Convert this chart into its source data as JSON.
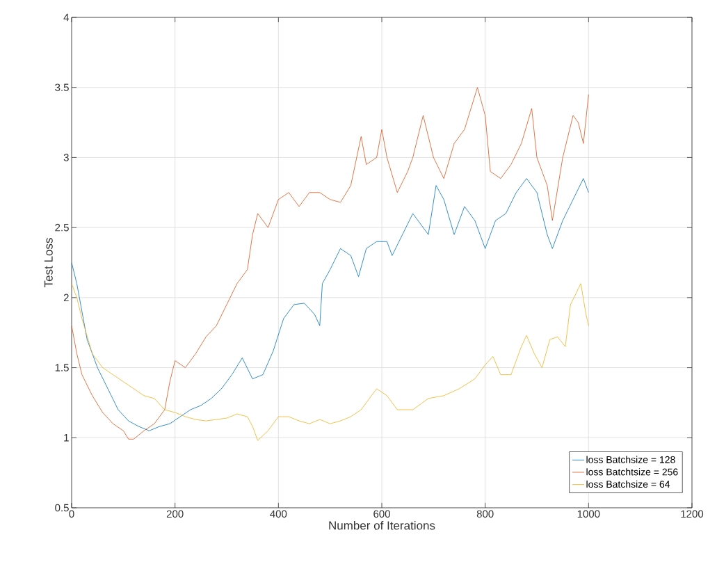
{
  "chart_data": {
    "type": "line",
    "xlabel": "Number of Iterations",
    "ylabel": "Test Loss",
    "xlim": [
      0,
      1200
    ],
    "ylim": [
      0.5,
      4
    ],
    "xticks": [
      0,
      200,
      400,
      600,
      800,
      1000,
      1200
    ],
    "yticks": [
      0.5,
      1,
      1.5,
      2,
      2.5,
      3,
      3.5,
      4
    ],
    "grid": true,
    "legend": "bottom right",
    "marker": "none",
    "line_style": "solid",
    "series": [
      {
        "name": "loss Batchsize = 128",
        "color": "#0072bd",
        "x": [
          0,
          10,
          20,
          30,
          50,
          70,
          90,
          110,
          130,
          150,
          170,
          190,
          210,
          230,
          250,
          270,
          290,
          310,
          330,
          350,
          370,
          390,
          410,
          430,
          450,
          470,
          480,
          485,
          500,
          520,
          540,
          555,
          570,
          590,
          610,
          620,
          640,
          660,
          670,
          690,
          705,
          720,
          740,
          760,
          780,
          800,
          820,
          840,
          860,
          880,
          900,
          920,
          930,
          950,
          970,
          990,
          1000
        ],
        "values": [
          2.25,
          2.1,
          1.9,
          1.7,
          1.5,
          1.35,
          1.2,
          1.12,
          1.08,
          1.05,
          1.08,
          1.1,
          1.15,
          1.2,
          1.23,
          1.28,
          1.35,
          1.45,
          1.57,
          1.42,
          1.45,
          1.62,
          1.85,
          1.95,
          1.96,
          1.88,
          1.8,
          2.1,
          2.2,
          2.35,
          2.3,
          2.15,
          2.35,
          2.4,
          2.4,
          2.3,
          2.45,
          2.6,
          2.55,
          2.45,
          2.8,
          2.7,
          2.45,
          2.65,
          2.55,
          2.35,
          2.55,
          2.6,
          2.75,
          2.85,
          2.75,
          2.45,
          2.35,
          2.55,
          2.7,
          2.85,
          2.75
        ]
      },
      {
        "name": "loss Batchtsize = 256",
        "color": "#d95319",
        "x": [
          0,
          10,
          20,
          40,
          60,
          80,
          100,
          110,
          120,
          140,
          160,
          180,
          190,
          200,
          220,
          240,
          260,
          280,
          300,
          320,
          340,
          350,
          360,
          380,
          400,
          420,
          440,
          460,
          480,
          500,
          520,
          540,
          560,
          570,
          590,
          600,
          610,
          630,
          650,
          660,
          680,
          700,
          720,
          740,
          760,
          785,
          800,
          810,
          830,
          850,
          870,
          890,
          900,
          920,
          930,
          950,
          970,
          980,
          990,
          1000
        ],
        "values": [
          1.8,
          1.6,
          1.45,
          1.3,
          1.18,
          1.1,
          1.05,
          0.99,
          0.99,
          1.05,
          1.1,
          1.2,
          1.4,
          1.55,
          1.5,
          1.6,
          1.72,
          1.8,
          1.95,
          2.1,
          2.2,
          2.45,
          2.6,
          2.5,
          2.7,
          2.75,
          2.65,
          2.75,
          2.75,
          2.7,
          2.68,
          2.8,
          3.15,
          2.95,
          3.0,
          3.2,
          3.0,
          2.75,
          2.9,
          3.0,
          3.3,
          3.0,
          2.85,
          3.1,
          3.2,
          3.5,
          3.3,
          2.9,
          2.85,
          2.95,
          3.1,
          3.35,
          3.0,
          2.8,
          2.55,
          3.0,
          3.3,
          3.25,
          3.1,
          3.45
        ]
      },
      {
        "name": "loss Batchsize = 64",
        "color": "#edb120",
        "x": [
          0,
          10,
          20,
          40,
          60,
          80,
          100,
          120,
          140,
          160,
          180,
          200,
          220,
          240,
          260,
          280,
          300,
          320,
          340,
          350,
          360,
          380,
          400,
          420,
          440,
          460,
          480,
          500,
          520,
          540,
          560,
          580,
          590,
          610,
          630,
          660,
          690,
          720,
          750,
          780,
          800,
          815,
          830,
          850,
          870,
          880,
          895,
          910,
          925,
          940,
          955,
          965,
          985,
          995,
          1000
        ],
        "values": [
          2.1,
          2.0,
          1.85,
          1.6,
          1.5,
          1.45,
          1.4,
          1.35,
          1.3,
          1.28,
          1.2,
          1.18,
          1.15,
          1.13,
          1.12,
          1.13,
          1.14,
          1.17,
          1.15,
          1.08,
          0.98,
          1.05,
          1.15,
          1.15,
          1.12,
          1.1,
          1.13,
          1.1,
          1.12,
          1.15,
          1.2,
          1.3,
          1.35,
          1.3,
          1.2,
          1.2,
          1.28,
          1.3,
          1.35,
          1.42,
          1.52,
          1.58,
          1.45,
          1.45,
          1.65,
          1.73,
          1.6,
          1.5,
          1.7,
          1.72,
          1.65,
          1.95,
          2.1,
          1.88,
          1.8
        ]
      }
    ]
  }
}
